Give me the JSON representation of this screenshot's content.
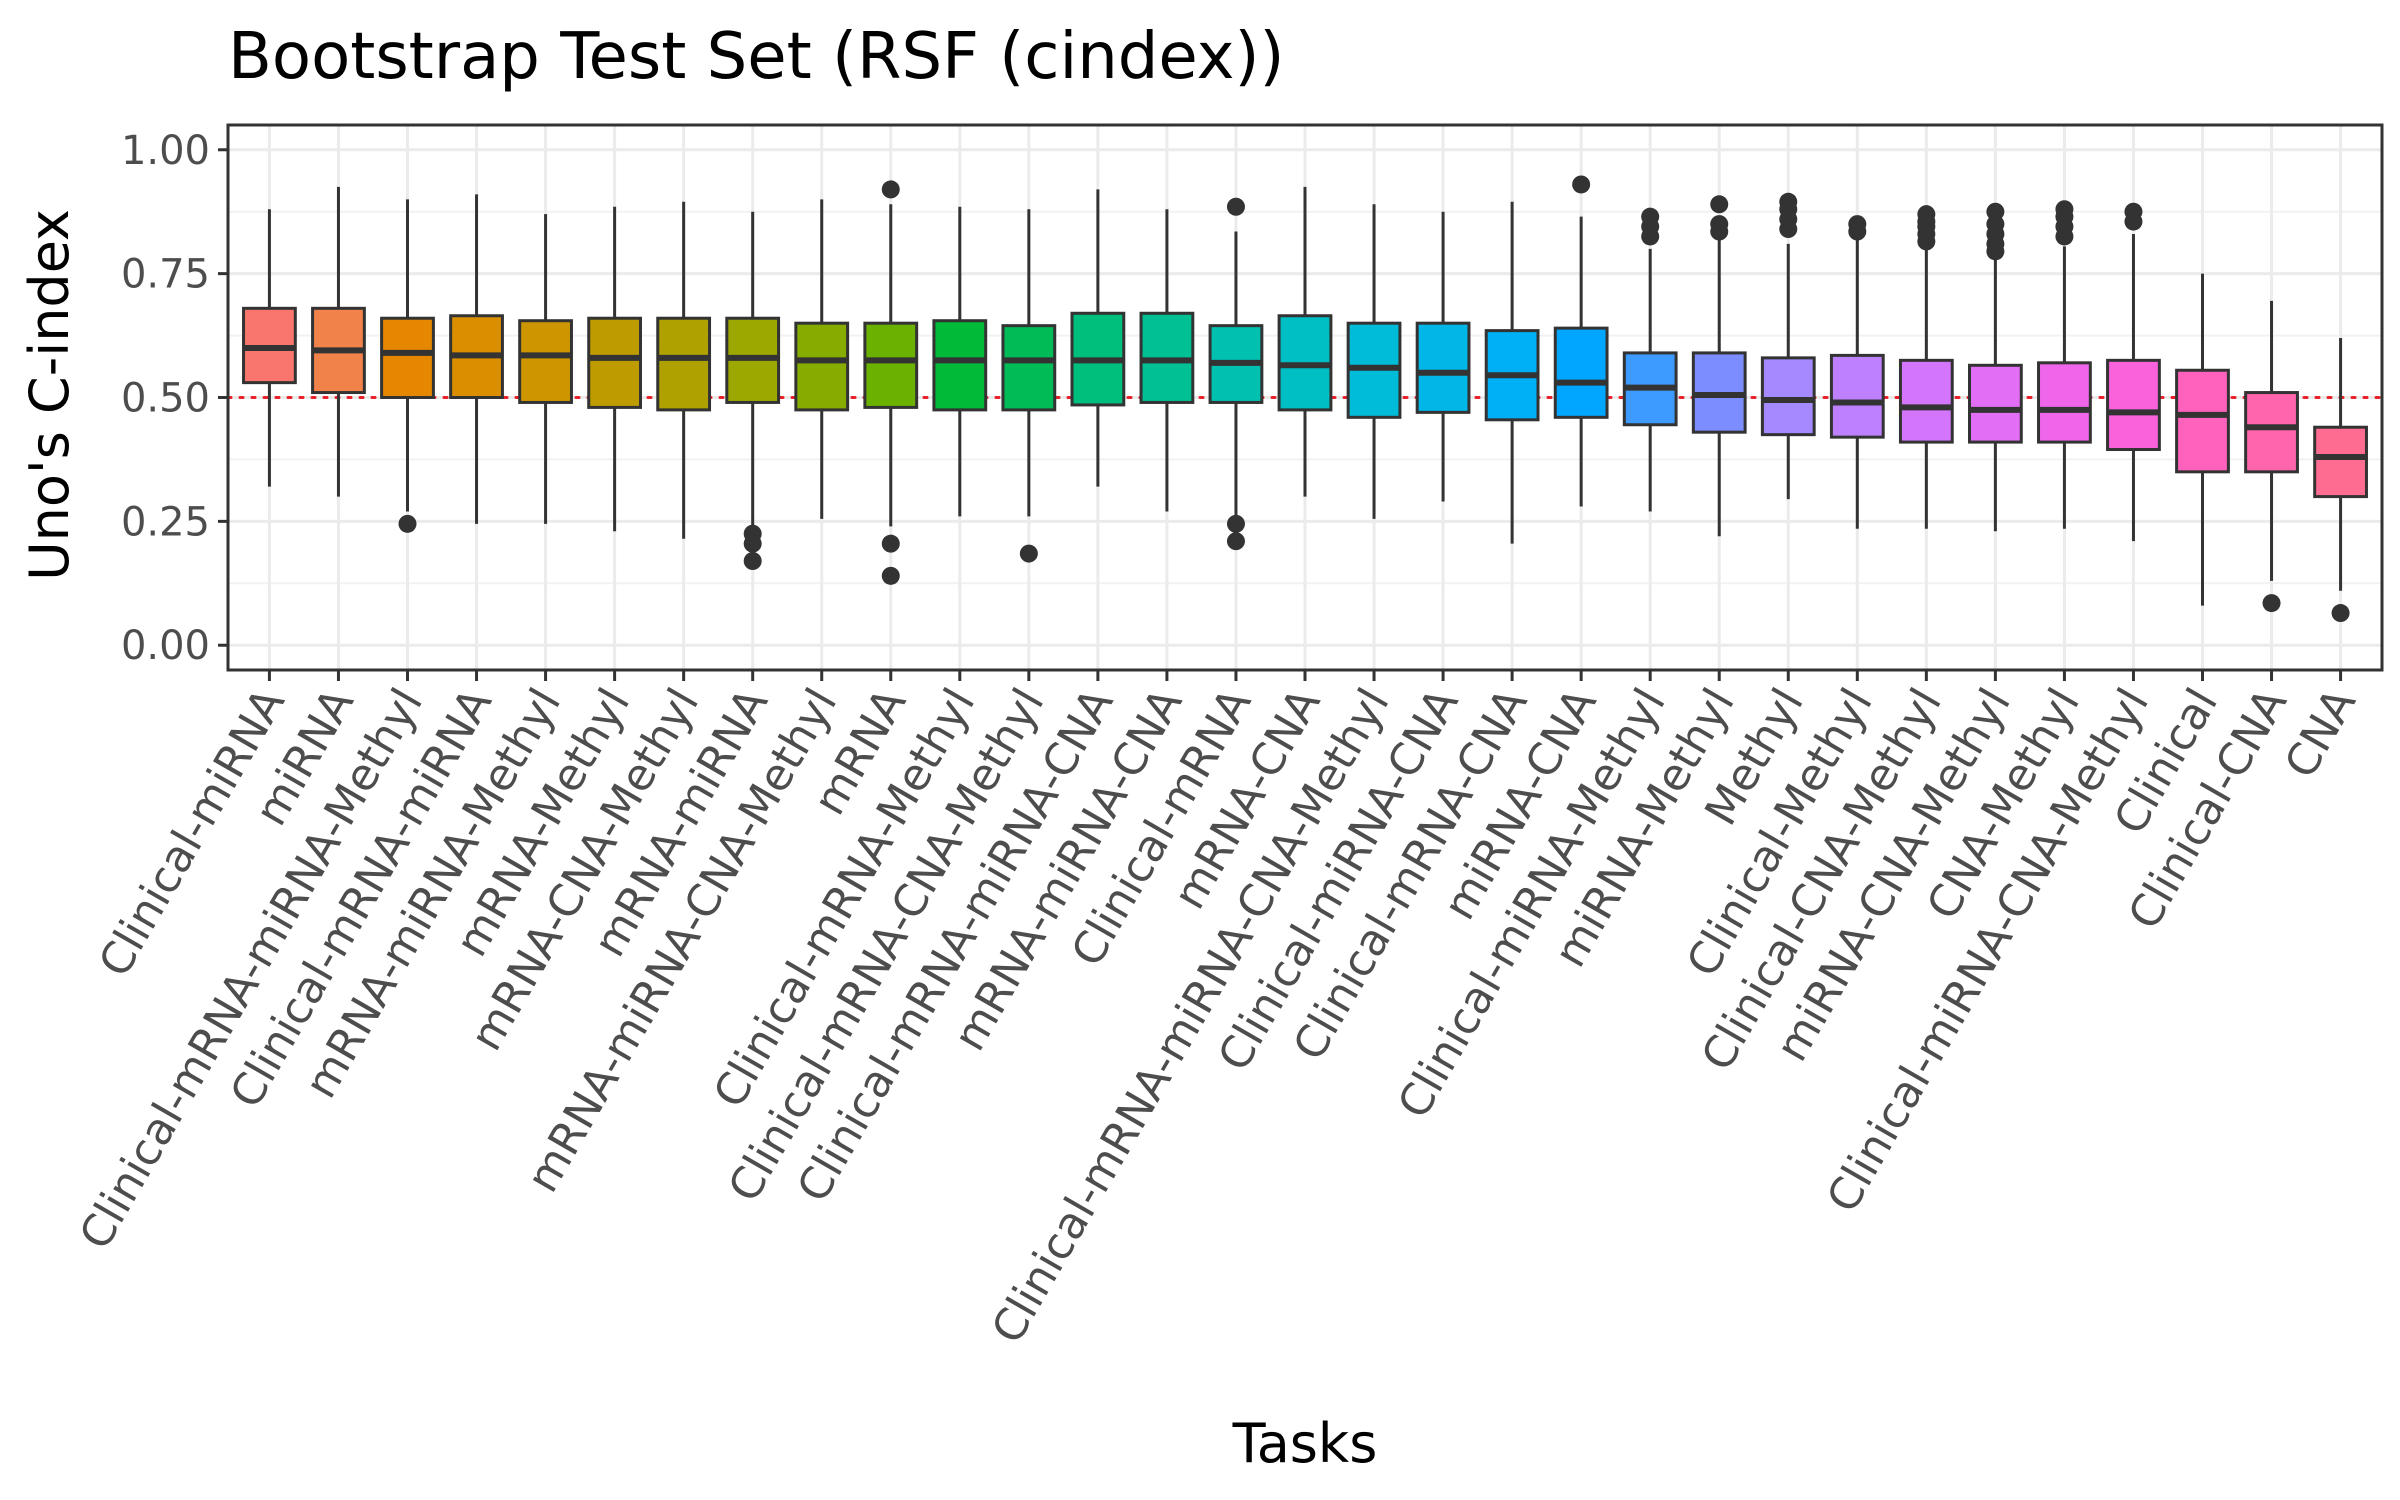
{
  "chart_data": {
    "type": "box",
    "title": "Bootstrap Test Set (RSF (cindex))",
    "xlabel": "Tasks",
    "ylabel": "Uno's C-index",
    "ylim": [
      -0.05,
      1.05
    ],
    "yticks": [
      {
        "value": 0.0,
        "label": "0.00"
      },
      {
        "value": 0.25,
        "label": "0.25"
      },
      {
        "value": 0.5,
        "label": "0.50"
      },
      {
        "value": 0.75,
        "label": "0.75"
      },
      {
        "value": 1.0,
        "label": "1.00"
      }
    ],
    "grid": true,
    "reference_line": {
      "y": 0.5,
      "style": "dotted",
      "color": "#e8202a"
    },
    "legend": "none",
    "boxes": [
      {
        "category": "Clinical-miRNA",
        "color": "#F8766D",
        "whisker_low": 0.32,
        "q1": 0.53,
        "median": 0.6,
        "q3": 0.68,
        "whisker_high": 0.88,
        "outliers": []
      },
      {
        "category": "miRNA",
        "color": "#F0824A",
        "whisker_low": 0.3,
        "q1": 0.51,
        "median": 0.595,
        "q3": 0.68,
        "whisker_high": 0.925,
        "outliers": []
      },
      {
        "category": "Clinical-mRNA-miRNA-Methyl",
        "color": "#E58700",
        "whisker_low": 0.27,
        "q1": 0.5,
        "median": 0.59,
        "q3": 0.66,
        "whisker_high": 0.9,
        "outliers": [
          0.245
        ]
      },
      {
        "category": "Clinical-mRNA-miRNA",
        "color": "#DA8F00",
        "whisker_low": 0.245,
        "q1": 0.5,
        "median": 0.585,
        "q3": 0.665,
        "whisker_high": 0.91,
        "outliers": []
      },
      {
        "category": "mRNA-miRNA-Methyl",
        "color": "#CD9600",
        "whisker_low": 0.245,
        "q1": 0.49,
        "median": 0.585,
        "q3": 0.655,
        "whisker_high": 0.87,
        "outliers": []
      },
      {
        "category": "mRNA-Methyl",
        "color": "#BE9C00",
        "whisker_low": 0.23,
        "q1": 0.48,
        "median": 0.58,
        "q3": 0.66,
        "whisker_high": 0.885,
        "outliers": []
      },
      {
        "category": "mRNA-CNA-Methyl",
        "color": "#AFA100",
        "whisker_low": 0.215,
        "q1": 0.475,
        "median": 0.58,
        "q3": 0.66,
        "whisker_high": 0.895,
        "outliers": []
      },
      {
        "category": "mRNA-miRNA",
        "color": "#9CA700",
        "whisker_low": 0.24,
        "q1": 0.49,
        "median": 0.58,
        "q3": 0.66,
        "whisker_high": 0.875,
        "outliers": [
          0.225,
          0.205,
          0.17
        ]
      },
      {
        "category": "mRNA-miRNA-CNA-Methyl",
        "color": "#86AC00",
        "whisker_low": 0.255,
        "q1": 0.475,
        "median": 0.575,
        "q3": 0.65,
        "whisker_high": 0.9,
        "outliers": []
      },
      {
        "category": "mRNA",
        "color": "#6BB100",
        "whisker_low": 0.24,
        "q1": 0.48,
        "median": 0.575,
        "q3": 0.65,
        "whisker_high": 0.89,
        "outliers": [
          0.92,
          0.205,
          0.14
        ]
      },
      {
        "category": "Clinical-mRNA-Methyl",
        "color": "#00BA38",
        "whisker_low": 0.26,
        "q1": 0.475,
        "median": 0.575,
        "q3": 0.655,
        "whisker_high": 0.885,
        "outliers": []
      },
      {
        "category": "Clinical-mRNA-CNA-Methyl",
        "color": "#00BC56",
        "whisker_low": 0.26,
        "q1": 0.475,
        "median": 0.575,
        "q3": 0.645,
        "whisker_high": 0.88,
        "outliers": [
          0.185
        ]
      },
      {
        "category": "Clinical-mRNA-miRNA-CNA",
        "color": "#00BF7D",
        "whisker_low": 0.32,
        "q1": 0.485,
        "median": 0.575,
        "q3": 0.67,
        "whisker_high": 0.92,
        "outliers": []
      },
      {
        "category": "mRNA-miRNA-CNA",
        "color": "#00C094",
        "whisker_low": 0.27,
        "q1": 0.49,
        "median": 0.575,
        "q3": 0.67,
        "whisker_high": 0.88,
        "outliers": []
      },
      {
        "category": "Clinical-mRNA",
        "color": "#00C0AF",
        "whisker_low": 0.26,
        "q1": 0.49,
        "median": 0.57,
        "q3": 0.645,
        "whisker_high": 0.835,
        "outliers": [
          0.885,
          0.245,
          0.21
        ]
      },
      {
        "category": "mRNA-CNA",
        "color": "#00BFC4",
        "whisker_low": 0.3,
        "q1": 0.475,
        "median": 0.565,
        "q3": 0.665,
        "whisker_high": 0.925,
        "outliers": []
      },
      {
        "category": "Clinical-mRNA-miRNA-CNA-Methyl",
        "color": "#00BCD8",
        "whisker_low": 0.255,
        "q1": 0.46,
        "median": 0.56,
        "q3": 0.65,
        "whisker_high": 0.89,
        "outliers": []
      },
      {
        "category": "Clinical-miRNA-CNA",
        "color": "#00B7E8",
        "whisker_low": 0.29,
        "q1": 0.47,
        "median": 0.55,
        "q3": 0.65,
        "whisker_high": 0.875,
        "outliers": []
      },
      {
        "category": "Clinical-mRNA-CNA",
        "color": "#00B0F6",
        "whisker_low": 0.205,
        "q1": 0.455,
        "median": 0.545,
        "q3": 0.635,
        "whisker_high": 0.895,
        "outliers": []
      },
      {
        "category": "miRNA-CNA",
        "color": "#00A6FF",
        "whisker_low": 0.28,
        "q1": 0.46,
        "median": 0.53,
        "q3": 0.64,
        "whisker_high": 0.865,
        "outliers": [
          0.93
        ]
      },
      {
        "category": "Clinical-miRNA-Methyl",
        "color": "#3D9AFF",
        "whisker_low": 0.27,
        "q1": 0.445,
        "median": 0.52,
        "q3": 0.59,
        "whisker_high": 0.8,
        "outliers": [
          0.865,
          0.845,
          0.825
        ]
      },
      {
        "category": "miRNA-Methyl",
        "color": "#7B8DFF",
        "whisker_low": 0.22,
        "q1": 0.43,
        "median": 0.505,
        "q3": 0.59,
        "whisker_high": 0.82,
        "outliers": [
          0.89,
          0.85,
          0.835
        ]
      },
      {
        "category": "Methyl",
        "color": "#A58AFF",
        "whisker_low": 0.295,
        "q1": 0.425,
        "median": 0.495,
        "q3": 0.58,
        "whisker_high": 0.81,
        "outliers": [
          0.895,
          0.88,
          0.86,
          0.84
        ]
      },
      {
        "category": "Clinical-Methyl",
        "color": "#BF80FF",
        "whisker_low": 0.235,
        "q1": 0.42,
        "median": 0.49,
        "q3": 0.585,
        "whisker_high": 0.825,
        "outliers": [
          0.85,
          0.835
        ]
      },
      {
        "category": "Clinical-CNA-Methyl",
        "color": "#D475FD",
        "whisker_low": 0.235,
        "q1": 0.41,
        "median": 0.48,
        "q3": 0.575,
        "whisker_high": 0.8,
        "outliers": [
          0.87,
          0.855,
          0.845,
          0.83,
          0.815
        ]
      },
      {
        "category": "miRNA-CNA-Methyl",
        "color": "#E36EF6",
        "whisker_low": 0.23,
        "q1": 0.41,
        "median": 0.475,
        "q3": 0.565,
        "whisker_high": 0.785,
        "outliers": [
          0.875,
          0.85,
          0.83,
          0.81,
          0.795
        ]
      },
      {
        "category": "CNA-Methyl",
        "color": "#F066EB",
        "whisker_low": 0.235,
        "q1": 0.41,
        "median": 0.475,
        "q3": 0.57,
        "whisker_high": 0.805,
        "outliers": [
          0.88,
          0.865,
          0.845,
          0.825
        ]
      },
      {
        "category": "Clinical-miRNA-CNA-Methyl",
        "color": "#FA62DB",
        "whisker_low": 0.21,
        "q1": 0.395,
        "median": 0.47,
        "q3": 0.575,
        "whisker_high": 0.83,
        "outliers": [
          0.875,
          0.855
        ]
      },
      {
        "category": "Clinical",
        "color": "#FF62BC",
        "whisker_low": 0.08,
        "q1": 0.35,
        "median": 0.465,
        "q3": 0.555,
        "whisker_high": 0.75,
        "outliers": []
      },
      {
        "category": "Clinical-CNA",
        "color": "#FF65AC",
        "whisker_low": 0.13,
        "q1": 0.35,
        "median": 0.44,
        "q3": 0.51,
        "whisker_high": 0.695,
        "outliers": [
          0.085
        ]
      },
      {
        "category": "CNA",
        "color": "#FF6C91",
        "whisker_low": 0.11,
        "q1": 0.3,
        "median": 0.38,
        "q3": 0.44,
        "whisker_high": 0.62,
        "outliers": [
          0.065
        ]
      }
    ]
  }
}
